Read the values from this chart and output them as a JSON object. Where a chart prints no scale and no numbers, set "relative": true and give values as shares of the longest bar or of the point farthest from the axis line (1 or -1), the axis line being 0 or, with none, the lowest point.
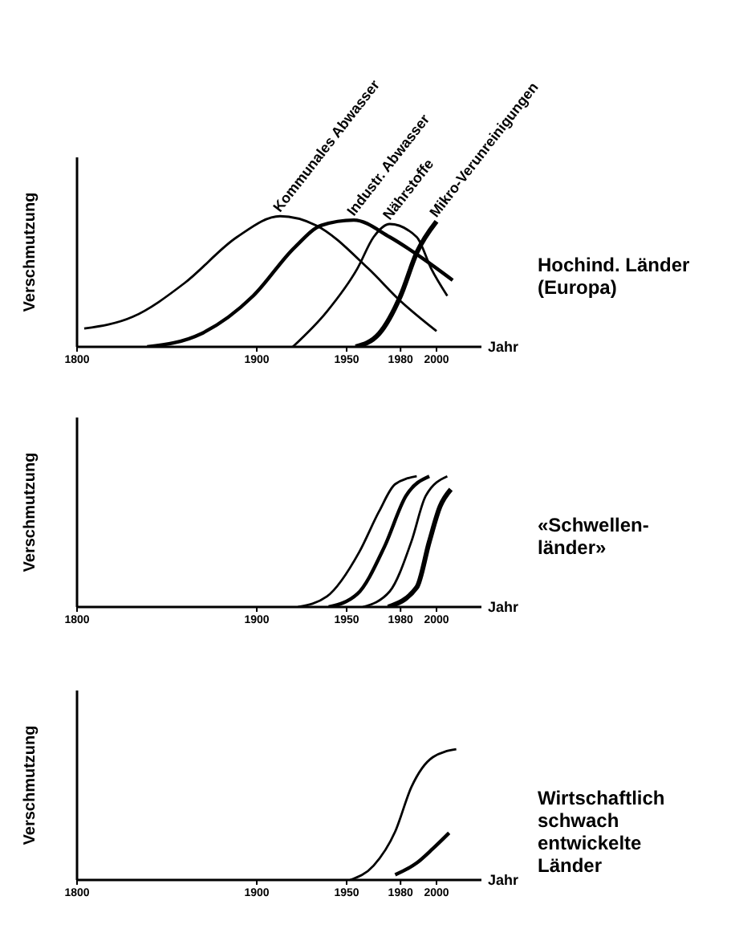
{
  "chart_data": [
    {
      "type": "line",
      "relative": true,
      "xlabel": "Jahr",
      "ylabel": "Verschmutzung",
      "xlim": [
        1800,
        2025
      ],
      "xticks": [
        1800,
        1900,
        1950,
        1980,
        2000
      ],
      "tick_labels": "x",
      "marker": "none",
      "line_style": "solid",
      "annotations": [
        "Hochind. Länder (Europa)"
      ],
      "series": [
        {
          "name": "Kommunales Abwasser",
          "color": "#000000",
          "x": [
            1804,
            1831,
            1860,
            1889,
            1913,
            1933,
            1962,
            1980,
            2000
          ],
          "values": [
            0.14,
            0.23,
            0.49,
            0.84,
            1,
            0.93,
            0.6,
            0.35,
            0.12
          ]
        },
        {
          "name": "Industr. Abwasser",
          "color": "#000000",
          "x": [
            1839,
            1869,
            1898,
            1921,
            1936,
            1954,
            1974,
            1992,
            2009
          ],
          "values": [
            0,
            0.1,
            0.39,
            0.76,
            0.93,
            0.97,
            0.84,
            0.68,
            0.51
          ]
        },
        {
          "name": "Nährstoffe",
          "color": "#000000",
          "x": [
            1920,
            1939,
            1956,
            1965,
            1974,
            1989,
            1997,
            2006
          ],
          "values": [
            0,
            0.27,
            0.6,
            0.84,
            0.94,
            0.84,
            0.6,
            0.39
          ]
        },
        {
          "name": "Mikro-Verunreinigungen",
          "color": "#000000",
          "x": [
            1955,
            1968,
            1980,
            1989,
            2000
          ],
          "values": [
            0,
            0.1,
            0.39,
            0.72,
            0.96
          ]
        }
      ]
    },
    {
      "type": "line",
      "relative": true,
      "xlabel": "Jahr",
      "ylabel": "Verschmutzung",
      "xlim": [
        1800,
        2025
      ],
      "xticks": [
        1800,
        1900,
        1950,
        1980,
        2000
      ],
      "tick_labels": "x",
      "marker": "none",
      "line_style": "solid",
      "annotations": [
        "«Schwellen- länder»"
      ],
      "series": [
        {
          "color": "#000000",
          "x": [
            1923,
            1939,
            1957,
            1968,
            1977,
            1989
          ],
          "values": [
            0,
            0.08,
            0.42,
            0.73,
            0.94,
            1
          ]
        },
        {
          "color": "#000000",
          "x": [
            1940,
            1956,
            1971,
            1983,
            1996
          ],
          "values": [
            0,
            0.1,
            0.46,
            0.85,
            1
          ]
        },
        {
          "color": "#000000",
          "x": [
            1959,
            1974,
            1986,
            1994,
            2006
          ],
          "values": [
            0,
            0.12,
            0.5,
            0.85,
            1
          ]
        },
        {
          "color": "#000000",
          "x": [
            1973,
            1989,
            1996,
            2002,
            2008
          ],
          "values": [
            0,
            0.15,
            0.5,
            0.77,
            0.9
          ]
        }
      ]
    },
    {
      "type": "line",
      "relative": true,
      "xlabel": "Jahr",
      "ylabel": "Verschmutzung",
      "xlim": [
        1800,
        2025
      ],
      "xticks": [
        1800,
        1900,
        1950,
        1980,
        2000
      ],
      "tick_labels": "x",
      "marker": "none",
      "line_style": "solid",
      "annotations": [
        "Wirtschaftlich schwach entwickelte Länder"
      ],
      "series": [
        {
          "color": "#000000",
          "x": [
            1952,
            1965,
            1977,
            1986,
            1998,
            2011
          ],
          "values": [
            0,
            0.11,
            0.37,
            0.71,
            0.94,
            1
          ]
        },
        {
          "color": "#000000",
          "x": [
            1977,
            1989,
            1998,
            2007
          ],
          "values": [
            0.04,
            0.13,
            0.24,
            0.36
          ]
        }
      ]
    }
  ]
}
